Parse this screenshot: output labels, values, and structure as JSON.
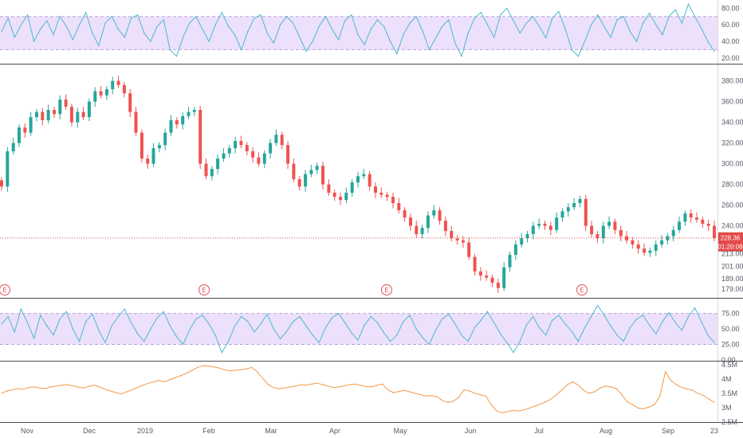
{
  "colors": {
    "up": "#26a69a",
    "down": "#ef5350",
    "rsi": "#4bb8d0",
    "rsi_band": "#ede0fb",
    "band_line": "#b5a6d6",
    "volume_line": "#f29a4a",
    "price_line": "#e34a4a",
    "axis_text": "#555a66",
    "divider": "#4a4a4a"
  },
  "x_axis_labels": [
    "Nov",
    "Dec",
    "2019",
    "Feb",
    "Mar",
    "Apr",
    "May",
    "Jun",
    "Jul",
    "Aug",
    "Sep",
    "23"
  ],
  "earnings_marker": "E",
  "chart_data": [
    {
      "type": "line",
      "panel": "rsi_top",
      "ylim": [
        15,
        88
      ],
      "band": [
        30,
        70
      ],
      "y_ticks": [
        "80.00",
        "60.00",
        "40.00",
        "20.00"
      ],
      "series": [
        {
          "values": [
            52,
            68,
            45,
            60,
            72,
            40,
            55,
            65,
            48,
            70,
            58,
            42,
            60,
            75,
            50,
            35,
            62,
            70,
            55,
            45,
            68,
            72,
            50,
            40,
            58,
            66,
            30,
            22,
            45,
            62,
            70,
            55,
            40,
            60,
            75,
            58,
            48,
            30,
            52,
            68,
            72,
            50,
            38,
            60,
            70,
            62,
            45,
            28,
            40,
            58,
            70,
            55,
            42,
            65,
            72,
            48,
            36,
            55,
            66,
            58,
            40,
            25,
            48,
            62,
            70,
            52,
            30,
            44,
            58,
            66,
            38,
            22,
            50,
            68,
            75,
            60,
            45,
            72,
            80,
            65,
            50,
            62,
            70,
            58,
            44,
            68,
            76,
            55,
            30,
            22,
            40,
            60,
            72,
            58,
            45,
            66,
            70,
            52,
            40,
            62,
            74,
            60,
            48,
            70,
            78,
            62,
            85,
            70,
            56,
            40,
            28
          ]
        }
      ]
    },
    {
      "type": "candlestick",
      "panel": "price",
      "ylim": [
        172,
        392
      ],
      "y_ticks": [
        "380.00",
        "360.00",
        "340.00",
        "320.00",
        "300.00",
        "280.00",
        "260.00",
        "240.00",
        "228.36",
        "213.00",
        "201.00",
        "189.00",
        "179.00"
      ],
      "last_price": 228.36,
      "countdown": "01:20:08",
      "earnings_index": [
        0,
        2,
        5,
        8
      ],
      "closes": [
        278,
        312,
        320,
        335,
        330,
        345,
        350,
        342,
        352,
        348,
        362,
        355,
        340,
        350,
        345,
        360,
        370,
        366,
        372,
        380,
        376,
        368,
        350,
        330,
        305,
        300,
        315,
        318,
        330,
        342,
        338,
        346,
        350,
        352,
        300,
        288,
        295,
        305,
        310,
        315,
        322,
        318,
        312,
        306,
        300,
        310,
        320,
        328,
        318,
        300,
        285,
        278,
        290,
        294,
        298,
        280,
        272,
        268,
        265,
        272,
        282,
        288,
        290,
        278,
        272,
        270,
        268,
        262,
        255,
        248,
        240,
        232,
        238,
        250,
        255,
        245,
        235,
        228,
        226,
        224,
        210,
        196,
        192,
        190,
        185,
        180,
        200,
        212,
        222,
        228,
        232,
        240,
        242,
        240,
        236,
        248,
        254,
        258,
        262,
        266,
        240,
        232,
        228,
        240,
        244,
        236,
        230,
        226,
        222,
        218,
        214,
        216,
        222,
        226,
        230,
        236,
        244,
        252,
        248,
        246,
        242,
        240,
        228
      ]
    },
    {
      "type": "line",
      "panel": "rsi_bottom",
      "ylim": [
        0,
        95
      ],
      "band": [
        25,
        75
      ],
      "y_ticks": [
        "75.00",
        "50.00",
        "25.00",
        "0.00"
      ],
      "series": [
        {
          "values": [
            58,
            70,
            45,
            82,
            60,
            35,
            72,
            55,
            40,
            66,
            78,
            50,
            30,
            62,
            74,
            48,
            28,
            55,
            70,
            82,
            60,
            42,
            30,
            50,
            68,
            78,
            55,
            38,
            25,
            48,
            66,
            72,
            58,
            40,
            12,
            30,
            55,
            70,
            62,
            45,
            58,
            74,
            50,
            34,
            46,
            62,
            70,
            55,
            40,
            28,
            52,
            68,
            75,
            60,
            44,
            32,
            56,
            70,
            60,
            44,
            30,
            40,
            62,
            72,
            50,
            36,
            25,
            48,
            66,
            74,
            58,
            40,
            30,
            52,
            64,
            78,
            60,
            42,
            28,
            12,
            30,
            56,
            70,
            52,
            40,
            64,
            72,
            58,
            46,
            30,
            52,
            70,
            88,
            72,
            55,
            40,
            30,
            52,
            66,
            72,
            56,
            42,
            62,
            76,
            60,
            48,
            70,
            84,
            62,
            40,
            28
          ]
        }
      ]
    },
    {
      "type": "line",
      "panel": "volume",
      "ylim": [
        2.55,
        4.55
      ],
      "y_ticks": [
        "4.5M",
        "4M",
        "3.5M",
        "3M",
        "2.5M"
      ],
      "series": [
        {
          "values": [
            3.5,
            3.58,
            3.62,
            3.66,
            3.64,
            3.7,
            3.72,
            3.68,
            3.66,
            3.72,
            3.75,
            3.78,
            3.8,
            3.76,
            3.72,
            3.68,
            3.74,
            3.78,
            3.72,
            3.64,
            3.58,
            3.52,
            3.48,
            3.55,
            3.62,
            3.7,
            3.78,
            3.85,
            3.9,
            3.95,
            3.9,
            3.98,
            4.05,
            4.12,
            4.2,
            4.3,
            4.4,
            4.46,
            4.45,
            4.42,
            4.38,
            4.32,
            4.28,
            4.3,
            4.32,
            4.35,
            4.4,
            4.25,
            4.02,
            3.8,
            3.7,
            3.65,
            3.68,
            3.72,
            3.75,
            3.8,
            3.78,
            3.82,
            3.85,
            3.8,
            3.75,
            3.7,
            3.72,
            3.76,
            3.8,
            3.82,
            3.78,
            3.74,
            3.72,
            3.78,
            3.82,
            3.62,
            3.52,
            3.56,
            3.6,
            3.55,
            3.5,
            3.45,
            3.4,
            3.42,
            3.38,
            3.25,
            3.18,
            3.22,
            3.35,
            3.62,
            3.58,
            3.5,
            3.45,
            3.4,
            3.1,
            2.88,
            2.82,
            2.86,
            2.9,
            2.88,
            2.92,
            2.98,
            3.05,
            3.12,
            3.2,
            3.3,
            3.45,
            3.62,
            3.8,
            3.9,
            3.78,
            3.6,
            3.5,
            3.55,
            3.68,
            3.75,
            3.72,
            3.66,
            3.45,
            3.2,
            3.1,
            2.98,
            2.96,
            3.02,
            3.1,
            3.4,
            4.25,
            3.95,
            3.8,
            3.7,
            3.65,
            3.6,
            3.5,
            3.42,
            3.3,
            3.18
          ]
        }
      ]
    }
  ]
}
